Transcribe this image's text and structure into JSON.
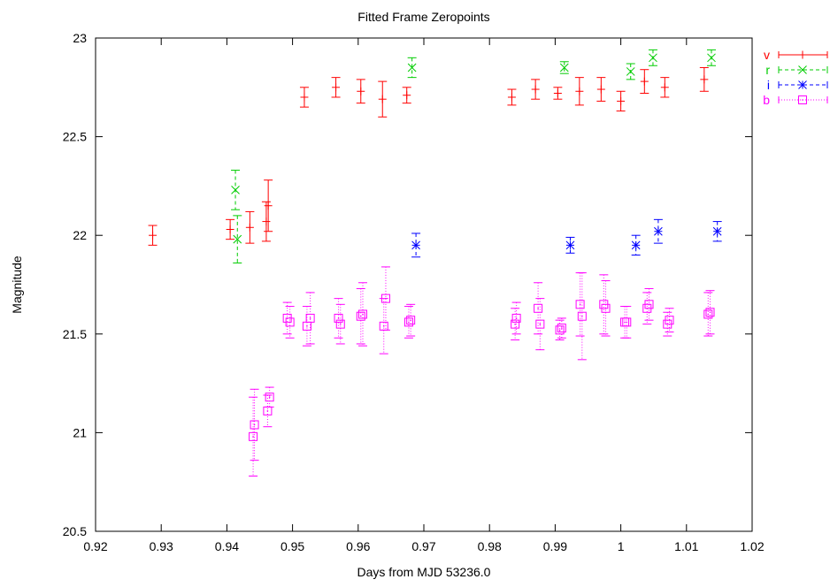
{
  "chart_data": {
    "type": "scatter",
    "title": "Fitted Frame Zeropoints",
    "xlabel": "Days from MJD 53236.0",
    "ylabel": "Magnitude",
    "xlim": [
      0.92,
      1.02
    ],
    "ylim": [
      20.5,
      23
    ],
    "xticks": [
      "0.92",
      "0.93",
      "0.94",
      "0.95",
      "0.96",
      "0.97",
      "0.98",
      "0.99",
      "1",
      "1.01",
      "1.02"
    ],
    "yticks": [
      "20.5",
      "21",
      "21.5",
      "22",
      "22.5",
      "23"
    ],
    "legend_position": "top-right outside",
    "grid": false,
    "series": [
      {
        "name": "v",
        "color": "#ff0000",
        "marker": "plus",
        "line": "solid",
        "points": [
          {
            "x": 0.9287,
            "y": 22.0,
            "err": 0.05
          },
          {
            "x": 0.9405,
            "y": 22.03,
            "err": 0.05
          },
          {
            "x": 0.9435,
            "y": 22.04,
            "err": 0.08
          },
          {
            "x": 0.946,
            "y": 22.07,
            "err": 0.1
          },
          {
            "x": 0.9463,
            "y": 22.15,
            "err": 0.13
          },
          {
            "x": 0.9518,
            "y": 22.7,
            "err": 0.05
          },
          {
            "x": 0.9566,
            "y": 22.75,
            "err": 0.05
          },
          {
            "x": 0.9604,
            "y": 22.73,
            "err": 0.06
          },
          {
            "x": 0.9637,
            "y": 22.69,
            "err": 0.09
          },
          {
            "x": 0.9674,
            "y": 22.71,
            "err": 0.04
          },
          {
            "x": 0.9834,
            "y": 22.7,
            "err": 0.04
          },
          {
            "x": 0.987,
            "y": 22.74,
            "err": 0.05
          },
          {
            "x": 0.9904,
            "y": 22.72,
            "err": 0.03
          },
          {
            "x": 0.9937,
            "y": 22.73,
            "err": 0.07
          },
          {
            "x": 0.997,
            "y": 22.74,
            "err": 0.06
          },
          {
            "x": 1.0,
            "y": 22.68,
            "err": 0.05
          },
          {
            "x": 1.0036,
            "y": 22.78,
            "err": 0.06
          },
          {
            "x": 1.0067,
            "y": 22.75,
            "err": 0.05
          },
          {
            "x": 1.0127,
            "y": 22.79,
            "err": 0.06
          }
        ]
      },
      {
        "name": "r",
        "color": "#00cc00",
        "marker": "cross",
        "line": "dashed",
        "points": [
          {
            "x": 0.9413,
            "y": 22.23,
            "err": 0.1
          },
          {
            "x": 0.9416,
            "y": 21.98,
            "err": 0.12
          },
          {
            "x": 0.9682,
            "y": 22.85,
            "err": 0.05
          },
          {
            "x": 0.9914,
            "y": 22.85,
            "err": 0.03
          },
          {
            "x": 1.0015,
            "y": 22.83,
            "err": 0.04
          },
          {
            "x": 1.0049,
            "y": 22.9,
            "err": 0.04
          },
          {
            "x": 1.0138,
            "y": 22.9,
            "err": 0.04
          }
        ]
      },
      {
        "name": "i",
        "color": "#0000ff",
        "marker": "star",
        "line": "dashed",
        "points": [
          {
            "x": 0.9688,
            "y": 21.95,
            "err": 0.06
          },
          {
            "x": 0.9923,
            "y": 21.95,
            "err": 0.04
          },
          {
            "x": 1.0023,
            "y": 21.95,
            "err": 0.05
          },
          {
            "x": 1.0057,
            "y": 22.02,
            "err": 0.06
          },
          {
            "x": 1.0147,
            "y": 22.02,
            "err": 0.05
          }
        ]
      },
      {
        "name": "b",
        "color": "#ff00ff",
        "marker": "box",
        "line": "dotted",
        "points": [
          {
            "x": 0.944,
            "y": 20.98,
            "err": 0.2
          },
          {
            "x": 0.9442,
            "y": 21.04,
            "err": 0.18
          },
          {
            "x": 0.9462,
            "y": 21.11,
            "err": 0.08
          },
          {
            "x": 0.9465,
            "y": 21.18,
            "err": 0.05
          },
          {
            "x": 0.9492,
            "y": 21.58,
            "err": 0.08
          },
          {
            "x": 0.9496,
            "y": 21.56,
            "err": 0.08
          },
          {
            "x": 0.9522,
            "y": 21.54,
            "err": 0.1
          },
          {
            "x": 0.9527,
            "y": 21.58,
            "err": 0.13
          },
          {
            "x": 0.957,
            "y": 21.58,
            "err": 0.1
          },
          {
            "x": 0.9573,
            "y": 21.55,
            "err": 0.1
          },
          {
            "x": 0.9604,
            "y": 21.59,
            "err": 0.14
          },
          {
            "x": 0.9607,
            "y": 21.6,
            "err": 0.16
          },
          {
            "x": 0.9639,
            "y": 21.54,
            "err": 0.14
          },
          {
            "x": 0.9642,
            "y": 21.68,
            "err": 0.16
          },
          {
            "x": 0.9677,
            "y": 21.56,
            "err": 0.08
          },
          {
            "x": 0.968,
            "y": 21.57,
            "err": 0.08
          },
          {
            "x": 0.9839,
            "y": 21.55,
            "err": 0.08
          },
          {
            "x": 0.9841,
            "y": 21.58,
            "err": 0.08
          },
          {
            "x": 0.9874,
            "y": 21.63,
            "err": 0.13
          },
          {
            "x": 0.9877,
            "y": 21.55,
            "err": 0.13
          },
          {
            "x": 0.9907,
            "y": 21.52,
            "err": 0.05
          },
          {
            "x": 0.991,
            "y": 21.53,
            "err": 0.05
          },
          {
            "x": 0.9938,
            "y": 21.65,
            "err": 0.16
          },
          {
            "x": 0.9941,
            "y": 21.59,
            "err": 0.22
          },
          {
            "x": 0.9974,
            "y": 21.65,
            "err": 0.15
          },
          {
            "x": 0.9977,
            "y": 21.63,
            "err": 0.14
          },
          {
            "x": 1.0006,
            "y": 21.56,
            "err": 0.08
          },
          {
            "x": 1.0009,
            "y": 21.56,
            "err": 0.08
          },
          {
            "x": 1.004,
            "y": 21.63,
            "err": 0.08
          },
          {
            "x": 1.0043,
            "y": 21.65,
            "err": 0.08
          },
          {
            "x": 1.0071,
            "y": 21.55,
            "err": 0.06
          },
          {
            "x": 1.0074,
            "y": 21.57,
            "err": 0.06
          },
          {
            "x": 1.0133,
            "y": 21.6,
            "err": 0.11
          },
          {
            "x": 1.0136,
            "y": 21.61,
            "err": 0.11
          }
        ]
      }
    ]
  }
}
